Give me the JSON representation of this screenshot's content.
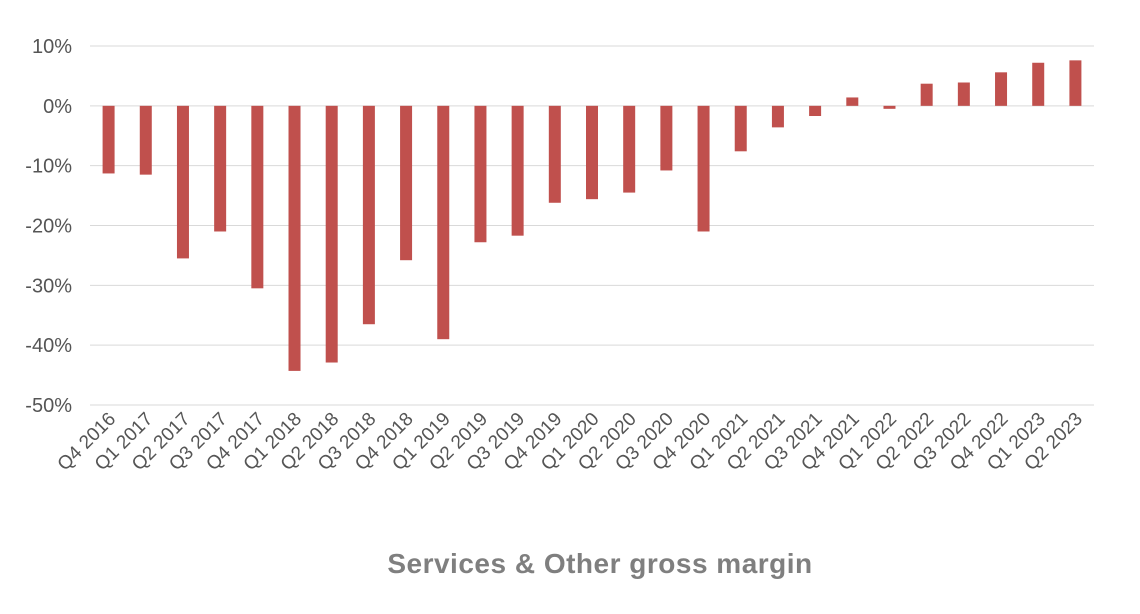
{
  "chart_data": {
    "type": "bar",
    "title": "Services & Other gross margin",
    "xlabel": "",
    "ylabel": "",
    "ylim": [
      -50,
      10
    ],
    "yticks": [
      10,
      0,
      -10,
      -20,
      -30,
      -40,
      -50
    ],
    "ytick_labels": [
      "10%",
      "0%",
      "-10%",
      "-20%",
      "-30%",
      "-40%",
      "-50%"
    ],
    "grid": true,
    "legend": "none",
    "bar_color": "#c0504d",
    "categories": [
      "Q4 2016",
      "Q1 2017",
      "Q2 2017",
      "Q3 2017",
      "Q4 2017",
      "Q1 2018",
      "Q2 2018",
      "Q3 2018",
      "Q4 2018",
      "Q1 2019",
      "Q2 2019",
      "Q3 2019",
      "Q4 2019",
      "Q1 2020",
      "Q2 2020",
      "Q3 2020",
      "Q4 2020",
      "Q1 2021",
      "Q2 2021",
      "Q3 2021",
      "Q4 2021",
      "Q1 2022",
      "Q2 2022",
      "Q3 2022",
      "Q4 2022",
      "Q1 2023",
      "Q2 2023"
    ],
    "values": [
      -11.3,
      -11.5,
      -25.5,
      -21.0,
      -30.5,
      -44.3,
      -42.9,
      -36.5,
      -25.8,
      -39.0,
      -22.8,
      -21.7,
      -16.2,
      -15.6,
      -14.5,
      -10.8,
      -21.0,
      -7.6,
      -3.6,
      -1.7,
      1.4,
      -0.5,
      3.7,
      3.9,
      5.6,
      7.2,
      7.6
    ]
  }
}
